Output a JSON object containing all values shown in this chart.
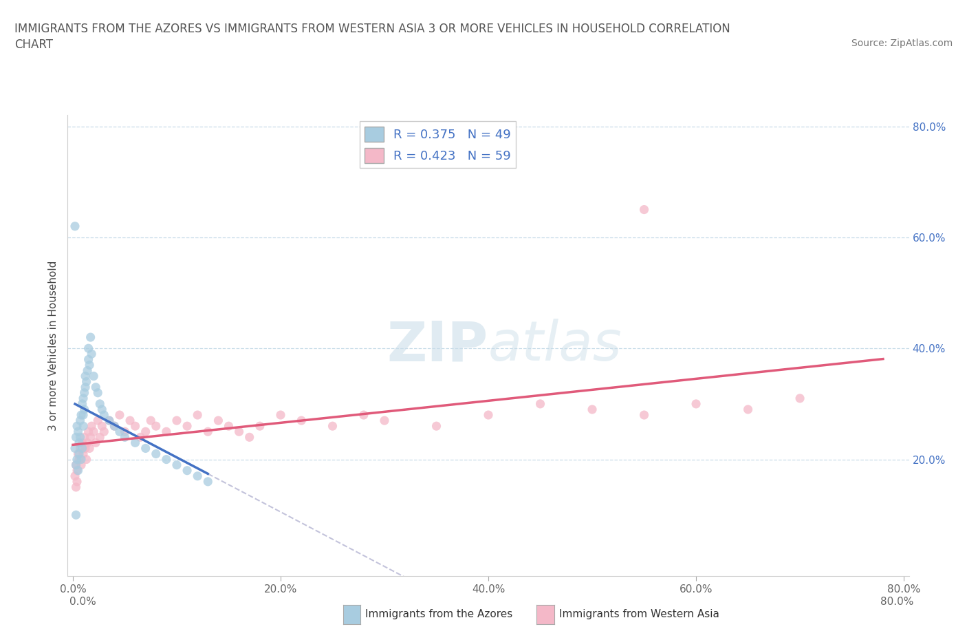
{
  "title_line1": "IMMIGRANTS FROM THE AZORES VS IMMIGRANTS FROM WESTERN ASIA 3 OR MORE VEHICLES IN HOUSEHOLD CORRELATION",
  "title_line2": "CHART",
  "source": "Source: ZipAtlas.com",
  "ylabel": "3 or more Vehicles in Household",
  "azores_R": 0.375,
  "azores_N": 49,
  "western_asia_R": 0.423,
  "western_asia_N": 59,
  "azores_color": "#a8cce0",
  "western_asia_color": "#f4b8c8",
  "azores_line_color": "#4472c4",
  "western_asia_line_color": "#e05a7a",
  "watermark_zip": "ZIP",
  "watermark_atlas": "atlas",
  "legend_label_azores": "Immigrants from the Azores",
  "legend_label_western_asia": "Immigrants from Western Asia",
  "right_tick_color": "#4472c4",
  "grid_color": "#c8dce8",
  "title_color": "#555555",
  "text_color": "#333333"
}
